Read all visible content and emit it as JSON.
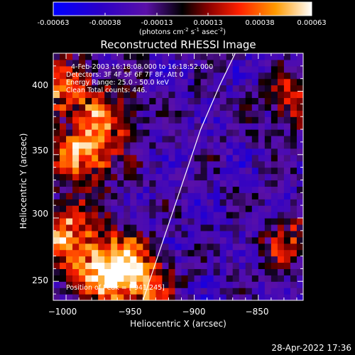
{
  "colorbar": {
    "ticks": [
      "-0.00063",
      "-0.00038",
      "-0.00013",
      "0.00013",
      "0.00038",
      "0.00063"
    ],
    "unit_main": "(photons cm",
    "unit_exp1": "-2",
    "unit_mid1": " s",
    "unit_exp2": "-1",
    "unit_mid2": " asec",
    "unit_exp3": "-2",
    "unit_end": ")"
  },
  "title": "Reconstructed RHESSI Image",
  "annotations": {
    "line1": "4-Feb-2003 16:18:08.000 to 16:18:52.000",
    "line2": "Detectors: 3F 4F 5F 6F 7F 8F, Att 0",
    "line3": "Energy Range: 25.0 - 50.0 keV",
    "line4": "Clean    Total counts: 446.",
    "peak": "Position of Peak = [-941,245]"
  },
  "timestamp": "28-Apr-2022 17:36",
  "colors": {
    "background": "#000000",
    "axes": "#ffffff",
    "limb": "#ffffff"
  },
  "chart_data": {
    "type": "heatmap",
    "title": "Reconstructed RHESSI Image",
    "xlabel": "Heliocentric X (arcsec)",
    "ylabel": "Heliocentric Y (arcsec)",
    "xlim": [
      -1010,
      -815
    ],
    "ylim": [
      235,
      430
    ],
    "xticks": [
      -1000,
      -950,
      -900,
      -850
    ],
    "yticks": [
      250,
      300,
      350,
      400
    ],
    "xtick_labels": [
      "−1000",
      "−950",
      "−900",
      "−850"
    ],
    "ytick_labels": [
      "250",
      "300",
      "350",
      "400"
    ],
    "colorbar_range": [
      -0.00063,
      0.00063
    ],
    "colormap": "blue-black-red-yellow-white",
    "peak_position": [
      -941,
      245
    ],
    "solar_limb": [
      [
        -940,
        235
      ],
      [
        -925,
        280
      ],
      [
        -910,
        325
      ],
      [
        -895,
        370
      ],
      [
        -880,
        405
      ],
      [
        -868,
        430
      ]
    ],
    "bright_regions": [
      {
        "x": -1000,
        "y": 400,
        "level": 0.0005
      },
      {
        "x": -985,
        "y": 350,
        "level": 0.00063
      },
      {
        "x": -1000,
        "y": 290,
        "level": 0.00055
      },
      {
        "x": -975,
        "y": 260,
        "level": 0.0006
      },
      {
        "x": -955,
        "y": 265,
        "level": 0.00045
      },
      {
        "x": -965,
        "y": 380,
        "level": 0.0004
      },
      {
        "x": -820,
        "y": 390,
        "level": 0.00045
      },
      {
        "x": -825,
        "y": 280,
        "level": 0.0004
      },
      {
        "x": -941,
        "y": 245,
        "level": 0.00063
      }
    ]
  }
}
